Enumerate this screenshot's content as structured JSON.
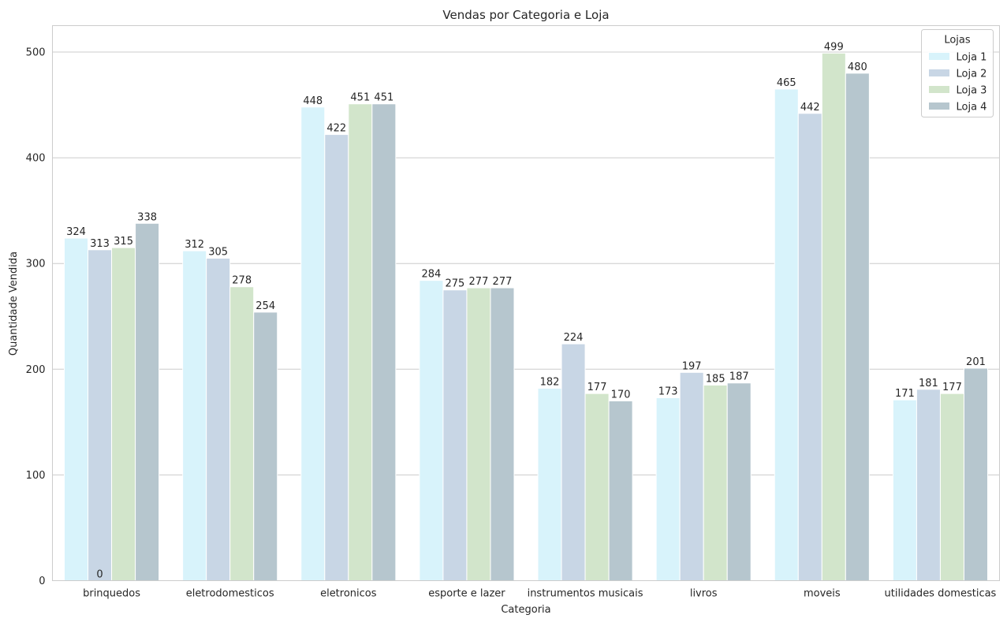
{
  "chart_data": {
    "type": "bar",
    "title": "Vendas por Categoria e Loja",
    "xlabel": "Categoria",
    "ylabel": "Quantidade Vendida",
    "ylim": [
      0,
      525
    ],
    "yticks": [
      0,
      100,
      200,
      300,
      400,
      500
    ],
    "grid": true,
    "legend": {
      "title": "Lojas",
      "placement": "top-right"
    },
    "categories": [
      "brinquedos",
      "eletrodomesticos",
      "eletronicos",
      "esporte e lazer",
      "instrumentos musicais",
      "livros",
      "moveis",
      "utilidades domesticas"
    ],
    "series": [
      {
        "name": "Loja 1",
        "color": "#d8f3fb",
        "values": [
          324,
          312,
          448,
          284,
          182,
          173,
          465,
          171
        ]
      },
      {
        "name": "Loja 2",
        "color": "#c8d6e5",
        "values": [
          313,
          305,
          422,
          275,
          224,
          197,
          442,
          181
        ]
      },
      {
        "name": "Loja 3",
        "color": "#d2e5cb",
        "values": [
          315,
          278,
          451,
          277,
          177,
          185,
          499,
          177
        ]
      },
      {
        "name": "Loja 4",
        "color": "#b6c6ce",
        "values": [
          338,
          254,
          451,
          277,
          170,
          187,
          480,
          201
        ]
      }
    ],
    "annotations": [
      {
        "text": "0",
        "category": "brinquedos",
        "series": "Loja 2",
        "y": 0
      }
    ]
  }
}
